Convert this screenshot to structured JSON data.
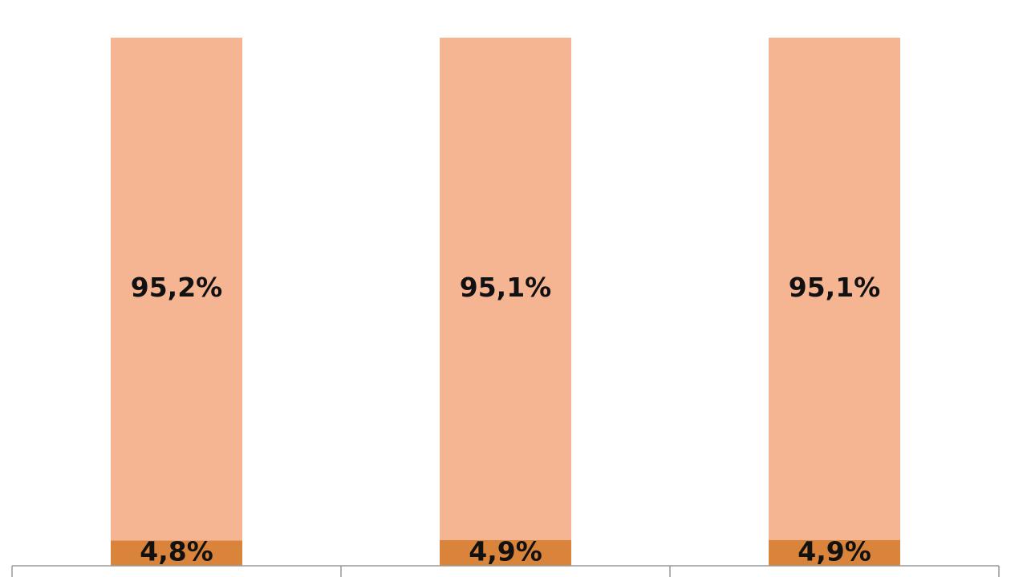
{
  "chart_data": {
    "type": "stacked_bar",
    "categories": [
      null,
      null,
      null
    ],
    "series": [
      {
        "color": "#d9833b",
        "values": [
          4.8,
          4.9,
          4.9
        ],
        "value_labels": [
          "4,8%",
          "4,9%",
          "4,9%"
        ]
      },
      {
        "color": "#f6b592",
        "values": [
          95.2,
          95.1,
          95.1
        ],
        "value_labels": [
          "95,2%",
          "95,1%",
          "95,1%"
        ]
      }
    ],
    "ylim": [
      0,
      100
    ]
  }
}
